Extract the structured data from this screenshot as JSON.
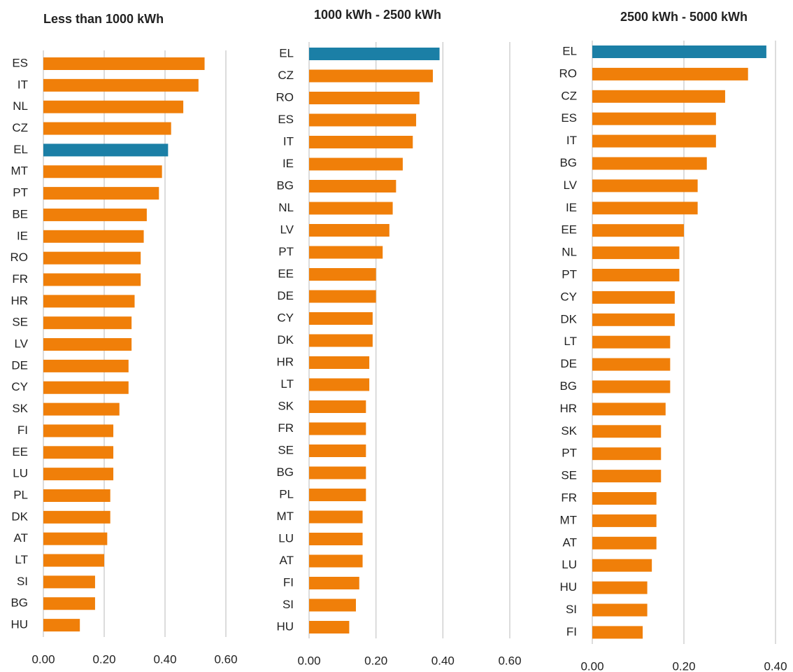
{
  "chart_data": [
    {
      "type": "bar",
      "title": "Less than 1000 kWh",
      "categories": [
        "ES",
        "IT",
        "NL",
        "CZ",
        "EL",
        "MT",
        "PT",
        "BE",
        "IE",
        "RO",
        "FR",
        "HR",
        "SE",
        "LV",
        "DE",
        "CY",
        "SK",
        "FI",
        "EE",
        "LU",
        "PL",
        "DK",
        "AT",
        "LT",
        "SI",
        "BG",
        "HU"
      ],
      "values": [
        0.53,
        0.51,
        0.46,
        0.42,
        0.41,
        0.39,
        0.38,
        0.34,
        0.33,
        0.32,
        0.32,
        0.3,
        0.29,
        0.29,
        0.28,
        0.28,
        0.25,
        0.23,
        0.23,
        0.23,
        0.22,
        0.22,
        0.21,
        0.2,
        0.17,
        0.17,
        0.12
      ],
      "colors": [
        "#f07f09",
        "#f07f09",
        "#f07f09",
        "#f07f09",
        "#1b7fa6",
        "#f07f09",
        "#f07f09",
        "#f07f09",
        "#f07f09",
        "#f07f09",
        "#f07f09",
        "#f07f09",
        "#f07f09",
        "#f07f09",
        "#f07f09",
        "#f07f09",
        "#f07f09",
        "#f07f09",
        "#f07f09",
        "#f07f09",
        "#f07f09",
        "#f07f09",
        "#f07f09",
        "#f07f09",
        "#f07f09",
        "#f07f09",
        "#f07f09"
      ],
      "xlim": [
        0,
        0.6
      ],
      "xticks": [
        {
          "value": 0,
          "label": "0.00"
        },
        {
          "value": 0.2,
          "label": "0.20"
        },
        {
          "value": 0.4,
          "label": "0.40"
        },
        {
          "value": 0.6,
          "label": "0.60"
        }
      ],
      "grid": true
    },
    {
      "type": "bar",
      "title": "1000 kWh - 2500 kWh",
      "categories": [
        "EL",
        "CZ",
        "RO",
        "ES",
        "IT",
        "IE",
        "BG",
        "NL",
        "LV",
        "PT",
        "EE",
        "DE",
        "CY",
        "DK",
        "HR",
        "LT",
        "SK",
        "FR",
        "SE",
        "BG",
        "PL",
        "MT",
        "LU",
        "AT",
        "FI",
        "SI",
        "HU"
      ],
      "values": [
        0.39,
        0.37,
        0.33,
        0.32,
        0.31,
        0.28,
        0.26,
        0.25,
        0.24,
        0.22,
        0.2,
        0.2,
        0.19,
        0.19,
        0.18,
        0.18,
        0.17,
        0.17,
        0.17,
        0.17,
        0.17,
        0.16,
        0.16,
        0.16,
        0.15,
        0.14,
        0.12
      ],
      "colors": [
        "#1b7fa6",
        "#f07f09",
        "#f07f09",
        "#f07f09",
        "#f07f09",
        "#f07f09",
        "#f07f09",
        "#f07f09",
        "#f07f09",
        "#f07f09",
        "#f07f09",
        "#f07f09",
        "#f07f09",
        "#f07f09",
        "#f07f09",
        "#f07f09",
        "#f07f09",
        "#f07f09",
        "#f07f09",
        "#f07f09",
        "#f07f09",
        "#f07f09",
        "#f07f09",
        "#f07f09",
        "#f07f09",
        "#f07f09",
        "#f07f09"
      ],
      "xlim": [
        0,
        0.6
      ],
      "xticks": [
        {
          "value": 0,
          "label": "0.00"
        },
        {
          "value": 0.2,
          "label": "0.20"
        },
        {
          "value": 0.4,
          "label": "0.40"
        },
        {
          "value": 0.6,
          "label": "0.60"
        }
      ],
      "grid": true
    },
    {
      "type": "bar",
      "title": "2500 kWh - 5000 kWh",
      "categories": [
        "EL",
        "RO",
        "CZ",
        "ES",
        "IT",
        "BG",
        "LV",
        "IE",
        "EE",
        "NL",
        "PT",
        "CY",
        "DK",
        "LT",
        "DE",
        "BG",
        "HR",
        "SK",
        "PT",
        "SE",
        "FR",
        "MT",
        "AT",
        "LU",
        "HU",
        "SI",
        "FI"
      ],
      "values": [
        0.38,
        0.34,
        0.29,
        0.27,
        0.27,
        0.25,
        0.23,
        0.23,
        0.2,
        0.19,
        0.19,
        0.18,
        0.18,
        0.17,
        0.17,
        0.17,
        0.16,
        0.15,
        0.15,
        0.15,
        0.14,
        0.14,
        0.14,
        0.13,
        0.12,
        0.12,
        0.11
      ],
      "colors": [
        "#1b7fa6",
        "#f07f09",
        "#f07f09",
        "#f07f09",
        "#f07f09",
        "#f07f09",
        "#f07f09",
        "#f07f09",
        "#f07f09",
        "#f07f09",
        "#f07f09",
        "#f07f09",
        "#f07f09",
        "#f07f09",
        "#f07f09",
        "#f07f09",
        "#f07f09",
        "#f07f09",
        "#f07f09",
        "#f07f09",
        "#f07f09",
        "#f07f09",
        "#f07f09",
        "#f07f09",
        "#f07f09",
        "#f07f09",
        "#f07f09"
      ],
      "xlim": [
        0,
        0.4
      ],
      "xticks": [
        {
          "value": 0,
          "label": "0.00"
        },
        {
          "value": 0.2,
          "label": "0.20"
        },
        {
          "value": 0.4,
          "label": "0.40"
        }
      ],
      "grid": true
    }
  ]
}
